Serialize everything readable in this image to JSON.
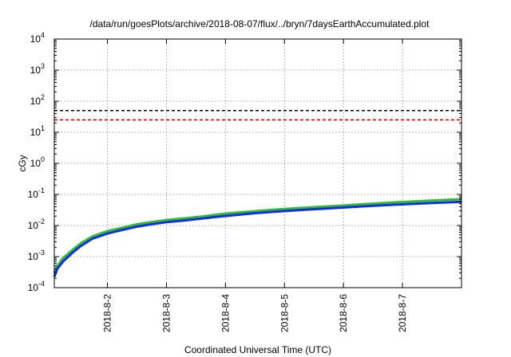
{
  "chart_data": {
    "type": "line",
    "title": "/data/run/goesPlots/archive/2018-08-07/flux/../bryn/7daysEarthAccumulated.plot",
    "xlabel": "Coordinated Universal Time (UTC)",
    "ylabel": "cGy",
    "yscale": "log",
    "ylim": [
      0.0001,
      10000
    ],
    "xlim": [
      1.1,
      8.0
    ],
    "grid": true,
    "x_ticks": [
      {
        "value": 2,
        "label": "2018-8-2"
      },
      {
        "value": 3,
        "label": "2018-8-3"
      },
      {
        "value": 4,
        "label": "2018-8-4"
      },
      {
        "value": 5,
        "label": "2018-8-5"
      },
      {
        "value": 6,
        "label": "2018-8-6"
      },
      {
        "value": 7,
        "label": "2018-8-7"
      }
    ],
    "y_ticks": [
      {
        "value": 0.0001,
        "base": "10",
        "exp": "-4"
      },
      {
        "value": 0.001,
        "base": "10",
        "exp": "-3"
      },
      {
        "value": 0.01,
        "base": "10",
        "exp": "-2"
      },
      {
        "value": 0.1,
        "base": "10",
        "exp": "-1"
      },
      {
        "value": 1,
        "base": "10",
        "exp": "0"
      },
      {
        "value": 10,
        "base": "10",
        "exp": "1"
      },
      {
        "value": 100,
        "base": "10",
        "exp": "2"
      },
      {
        "value": 1000,
        "base": "10",
        "exp": "3"
      },
      {
        "value": 10000,
        "base": "10",
        "exp": "4"
      }
    ],
    "thresholds": [
      {
        "value": 50,
        "color": "#000000"
      },
      {
        "value": 25,
        "color": "#e00000"
      }
    ],
    "series": [
      {
        "color": "#33bb33",
        "x": [
          1.1,
          1.15,
          1.25,
          1.4,
          1.55,
          1.75,
          2.0,
          2.25,
          2.5,
          2.75,
          3.0,
          3.3,
          3.6,
          3.9,
          4.2,
          4.5,
          4.8,
          5.1,
          5.4,
          5.7,
          6.0,
          6.3,
          6.6,
          6.9,
          7.2,
          7.5,
          8.0
        ],
        "y": [
          0.0003,
          0.0005,
          0.0009,
          0.0016,
          0.0027,
          0.0045,
          0.0066,
          0.0085,
          0.011,
          0.013,
          0.015,
          0.017,
          0.0195,
          0.023,
          0.026,
          0.029,
          0.032,
          0.035,
          0.038,
          0.041,
          0.044,
          0.048,
          0.052,
          0.056,
          0.06,
          0.064,
          0.07
        ]
      },
      {
        "color": "#1030e0",
        "x": [
          1.1,
          1.15,
          1.25,
          1.4,
          1.55,
          1.75,
          2.0,
          2.25,
          2.5,
          2.75,
          3.0,
          3.3,
          3.6,
          3.9,
          4.2,
          4.5,
          4.8,
          5.1,
          5.4,
          5.7,
          6.0,
          6.3,
          6.6,
          6.9,
          7.2,
          7.5,
          8.0
        ],
        "y": [
          0.00022,
          0.0004,
          0.0007,
          0.0013,
          0.0022,
          0.0038,
          0.0055,
          0.0072,
          0.0092,
          0.011,
          0.0128,
          0.0145,
          0.0168,
          0.0195,
          0.022,
          0.025,
          0.0275,
          0.03,
          0.0325,
          0.035,
          0.038,
          0.041,
          0.044,
          0.047,
          0.05,
          0.053,
          0.058
        ]
      }
    ]
  }
}
